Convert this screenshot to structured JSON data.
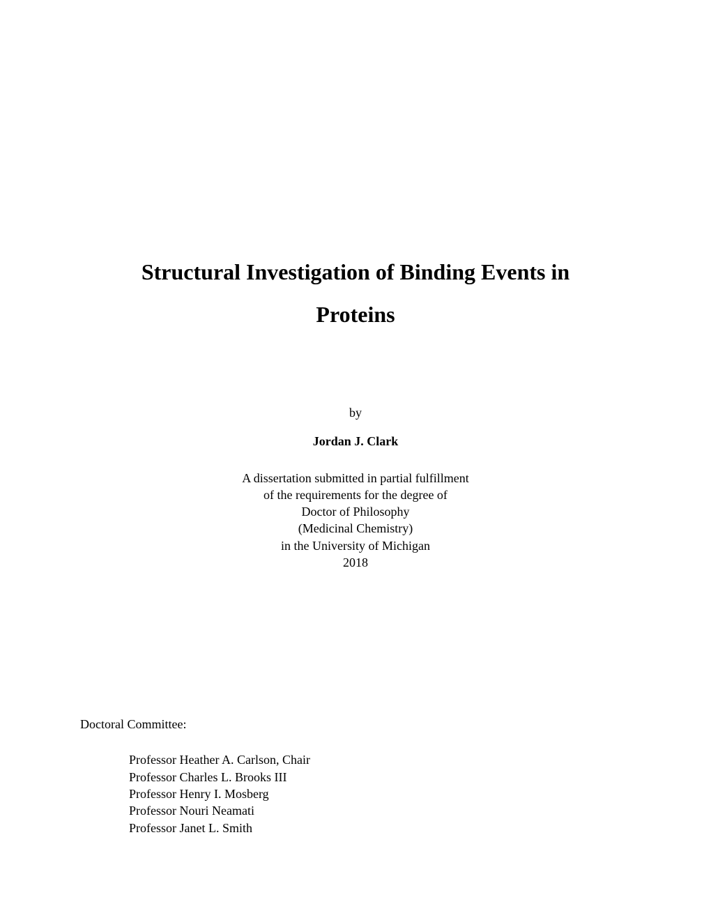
{
  "title": {
    "line1": "Structural Investigation of Binding Events in",
    "line2": "Proteins"
  },
  "byline": "by",
  "author": "Jordan J. Clark",
  "description": {
    "line1": "A dissertation submitted in partial fulfillment",
    "line2": "of the requirements for the degree of",
    "line3": "Doctor of Philosophy",
    "line4": "(Medicinal Chemistry)",
    "line5": "in the University of Michigan",
    "line6": "2018"
  },
  "committee": {
    "heading": "Doctoral Committee:",
    "members": {
      "m0": "Professor Heather A. Carlson, Chair",
      "m1": "Professor Charles L. Brooks III",
      "m2": "Professor Henry I. Mosberg",
      "m3": "Professor Nouri Neamati",
      "m4": "Professor Janet L. Smith"
    }
  }
}
